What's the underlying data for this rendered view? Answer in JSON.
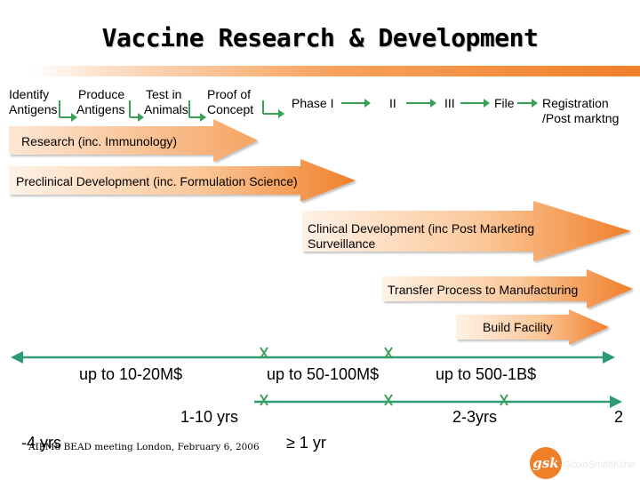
{
  "title": "Vaccine Research & Development",
  "steps": [
    {
      "line1": "Identify",
      "line2": "Antigens"
    },
    {
      "line1": "Produce",
      "line2": "Antigens"
    },
    {
      "line1": "Test in",
      "line2": "Animals"
    },
    {
      "line1": "Proof of",
      "line2": "Concept"
    },
    {
      "line1": "Phase I",
      "line2": ""
    },
    {
      "line1": "II",
      "line2": ""
    },
    {
      "line1": "III",
      "line2": ""
    },
    {
      "line1": "File",
      "line2": ""
    },
    {
      "line1": "Registration",
      "line2": "/Post marktng"
    }
  ],
  "bands": [
    {
      "line1": "Research (inc. Immunology)",
      "line2": ""
    },
    {
      "line1": "Preclinical Development (inc. Formulation Science)",
      "line2": ""
    },
    {
      "line1": "Clinical Development (inc Post Marketing",
      "line2": "Surveillance"
    },
    {
      "line1": "Transfer Process to Manufacturing",
      "line2": ""
    },
    {
      "line1": "Build Facility",
      "line2": ""
    }
  ],
  "timeline": {
    "costs": [
      "up to 10-20M$",
      "up to 50-100M$",
      "up to 500-1B$"
    ],
    "durations": [
      "1-10 yrs",
      "2-3yrs",
      "2",
      "-4 yrs",
      "≥ 1 yr"
    ]
  },
  "footer": "AIPM8 BEAD meeting London, February 6, 2006",
  "logo": {
    "mark": "gsk",
    "word": "GlaxoSmithKline"
  },
  "colors": {
    "accent": "#f07f2a",
    "arrow_light": "#fde3cf",
    "timeline": "#2f9a7a",
    "step_arrow": "#3aa055"
  }
}
